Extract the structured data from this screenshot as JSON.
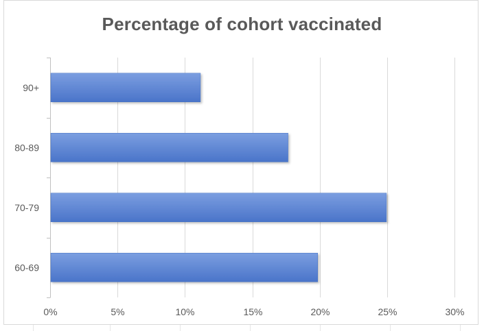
{
  "chart_data": {
    "type": "bar",
    "orientation": "horizontal",
    "title": "Percentage of cohort vaccinated",
    "categories": [
      "90+",
      "80-89",
      "70-79",
      "60-69"
    ],
    "values": [
      11.1,
      17.6,
      24.9,
      19.8
    ],
    "x_ticks": [
      "0%",
      "5%",
      "10%",
      "15%",
      "20%",
      "25%",
      "30%"
    ],
    "xlim": [
      0,
      30
    ],
    "unit": "%",
    "grid": true,
    "legend": "none",
    "colors": {
      "bar_top": "#7b9ee0",
      "bar_bottom": "#4a74c9",
      "bar_edge": "#4472c4",
      "grid": "#d9d9d9",
      "axis": "#bfbfbf",
      "text": "#595959"
    }
  }
}
